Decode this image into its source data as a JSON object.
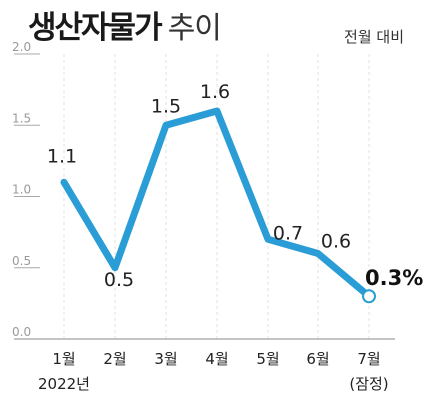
{
  "header": {
    "title_bold": "생산자물가",
    "title_light": "추이",
    "subtitle": "전월 대비"
  },
  "colors": {
    "line": "#2a9dd6",
    "grid": "#e2e2e2",
    "axis_tick": "#a8a8a8",
    "label": "#222222"
  },
  "chart_data": {
    "type": "line",
    "title": "생산자물가 추이",
    "subtitle": "전월 대비",
    "categories": [
      "1월",
      "2월",
      "3월",
      "4월",
      "5월",
      "6월",
      "7월"
    ],
    "values": [
      1.1,
      0.5,
      1.5,
      1.6,
      0.7,
      0.6,
      0.3
    ],
    "value_labels": [
      "1.1",
      "0.5",
      "1.5",
      "1.6",
      "0.7",
      "0.6",
      "0.3"
    ],
    "highlight_label": "0.3%",
    "yticks": [
      "2.0",
      "1.5",
      "1.0",
      "0.5",
      "0.0"
    ],
    "ytick_values": [
      2.0,
      1.5,
      1.0,
      0.5,
      0.0
    ],
    "ylim": [
      0,
      2.0
    ],
    "x_sublabels": {
      "first": "2022년",
      "last": "(잠정)"
    },
    "grid": "vertical dashed",
    "legend": "none"
  }
}
